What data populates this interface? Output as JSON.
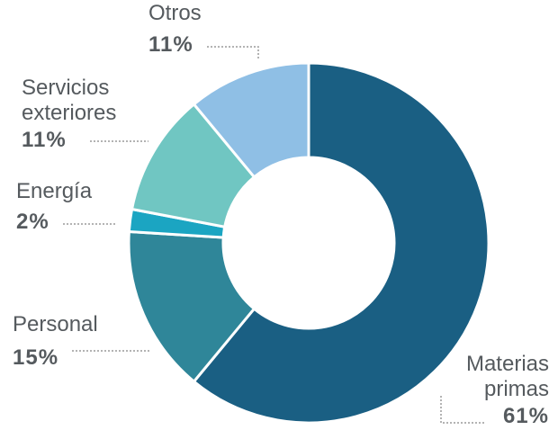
{
  "chart_data": {
    "type": "donut",
    "categories": [
      "Materias primas",
      "Personal",
      "Energía",
      "Servicios exteriores",
      "Otros"
    ],
    "values": [
      61,
      15,
      2,
      11,
      11
    ],
    "value_labels": [
      "61%",
      "15%",
      "2%",
      "11%",
      "11%"
    ],
    "colors": [
      "#1a5f83",
      "#2f8699",
      "#1ba5c2",
      "#70c6c2",
      "#8fbfe5"
    ]
  }
}
